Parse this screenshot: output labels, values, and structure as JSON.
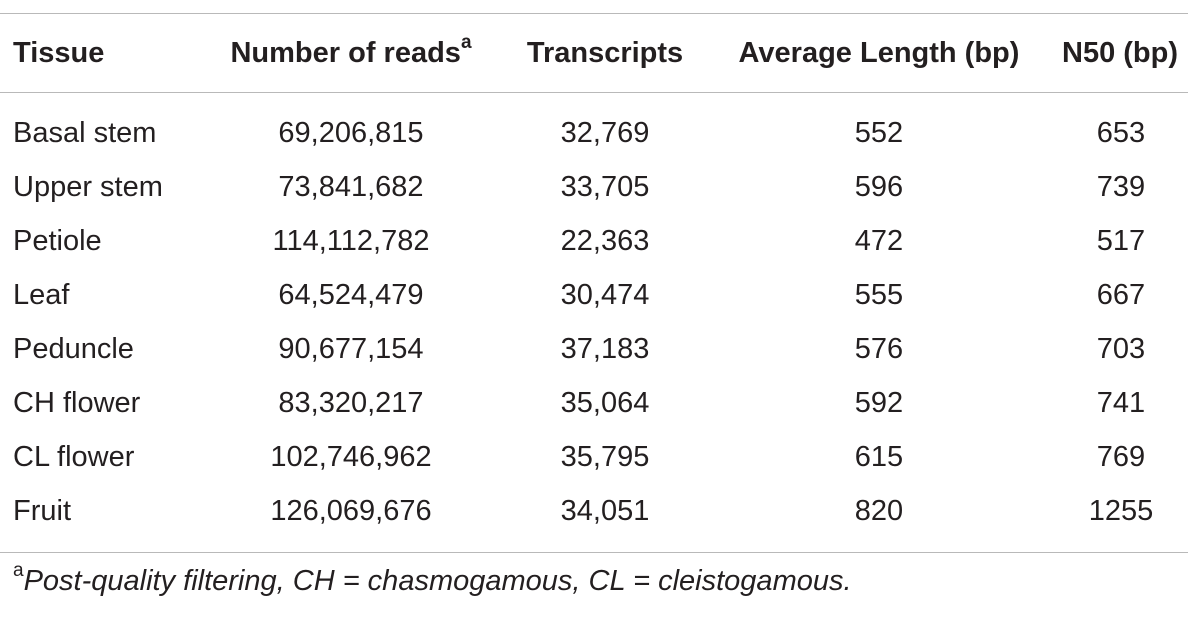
{
  "table": {
    "headers": {
      "tissue": "Tissue",
      "reads": "Number of reads",
      "reads_note_marker": "a",
      "transcripts": "Transcripts",
      "avg_length": "Average Length (bp)",
      "n50": "N50 (bp)"
    },
    "rows": [
      {
        "tissue": "Basal stem",
        "reads": "69,206,815",
        "transcripts": "32,769",
        "avg_length": "552",
        "n50": "653"
      },
      {
        "tissue": "Upper stem",
        "reads": "73,841,682",
        "transcripts": "33,705",
        "avg_length": "596",
        "n50": "739"
      },
      {
        "tissue": "Petiole",
        "reads": "114,112,782",
        "transcripts": "22,363",
        "avg_length": "472",
        "n50": "517"
      },
      {
        "tissue": "Leaf",
        "reads": "64,524,479",
        "transcripts": "30,474",
        "avg_length": "555",
        "n50": "667"
      },
      {
        "tissue": "Peduncle",
        "reads": "90,677,154",
        "transcripts": "37,183",
        "avg_length": "576",
        "n50": "703"
      },
      {
        "tissue": "CH flower",
        "reads": "83,320,217",
        "transcripts": "35,064",
        "avg_length": "592",
        "n50": "741"
      },
      {
        "tissue": "CL flower",
        "reads": "102,746,962",
        "transcripts": "35,795",
        "avg_length": "615",
        "n50": "769"
      },
      {
        "tissue": "Fruit",
        "reads": "126,069,676",
        "transcripts": "34,051",
        "avg_length": "820",
        "n50": "1255"
      }
    ]
  },
  "footnote": {
    "marker": "a",
    "text": "Post-quality filtering, CH = chasmogamous, CL = cleistogamous."
  }
}
